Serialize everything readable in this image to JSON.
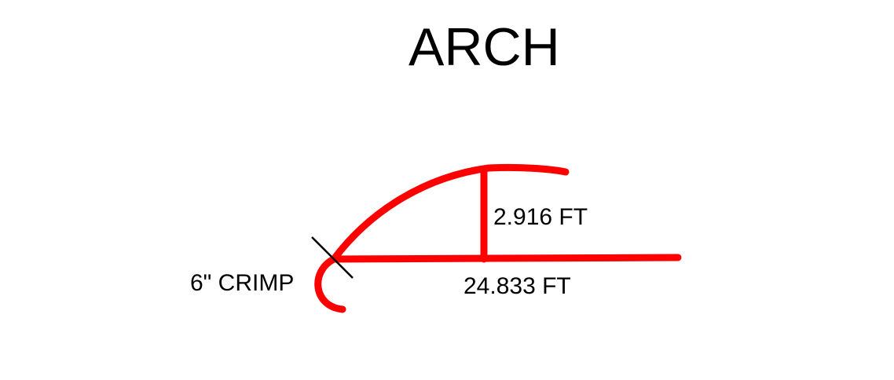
{
  "title": "ARCH",
  "labels": {
    "height": "2.916 FT",
    "span": "24.833 FT",
    "crimp": "6\" CRIMP"
  },
  "colors": {
    "stroke": "#ff0000",
    "marker": "#000000",
    "text": "#000000",
    "background": "#ffffff"
  }
}
